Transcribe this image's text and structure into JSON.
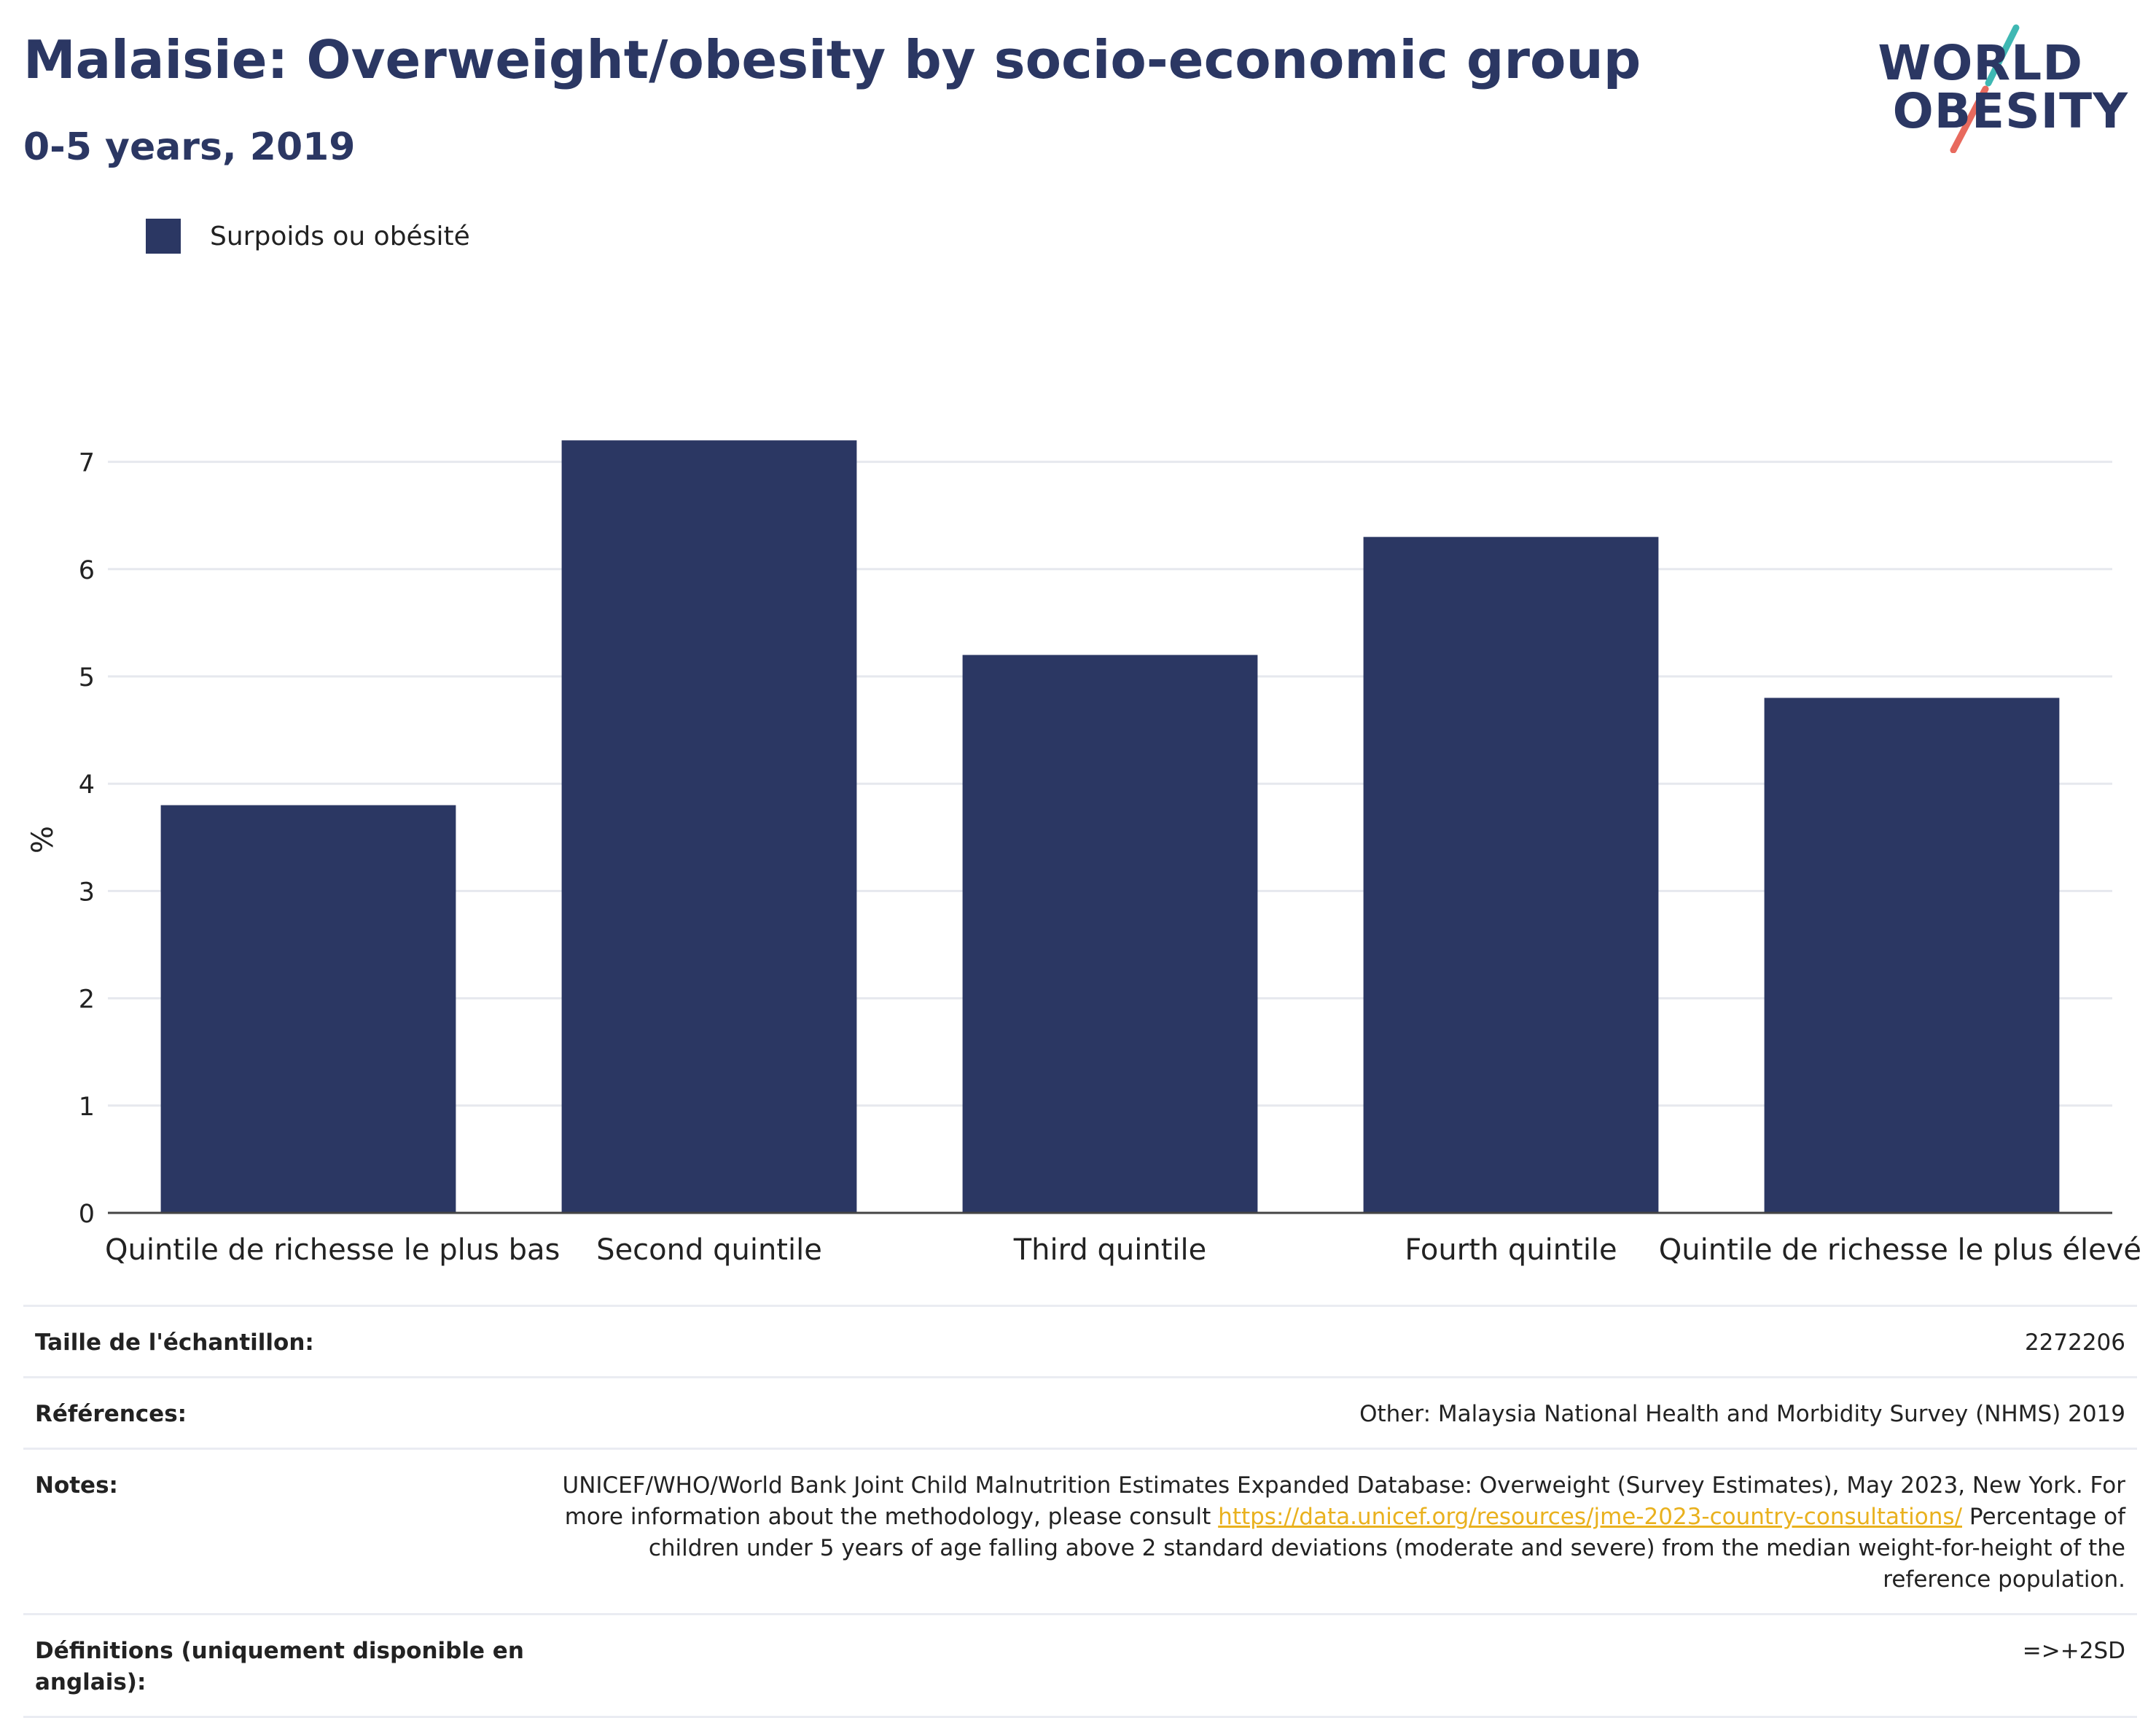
{
  "header": {
    "title": "Malaisie: Overweight/obesity by socio-economic group",
    "subtitle": "0-5 years, 2019"
  },
  "logo": {
    "line1": "WORLD",
    "line2": "OBESITY",
    "colors": {
      "text": "#2b3763",
      "slash_top": "#3fb8b3",
      "slash_bottom": "#e86a5e"
    }
  },
  "legend": {
    "label": "Surpoids ou obésité",
    "color": "#2b3763"
  },
  "chart_data": {
    "type": "bar",
    "title": "Malaisie: Overweight/obesity by socio-economic group",
    "subtitle": "0-5 years, 2019",
    "xlabel": "",
    "ylabel": "%",
    "categories": [
      "Quintile de richesse le plus bas",
      "Second quintile",
      "Third quintile",
      "Fourth quintile",
      "Quintile de richesse le plus élevé"
    ],
    "series": [
      {
        "name": "Surpoids ou obésité",
        "values": [
          3.8,
          7.2,
          5.2,
          6.3,
          4.8
        ],
        "color": "#2b3763"
      }
    ],
    "ylim": [
      0,
      7.5
    ],
    "yticks": [
      0,
      1,
      2,
      3,
      4,
      5,
      6,
      7
    ],
    "grid": true,
    "legend_position": "top-left"
  },
  "info": {
    "sample_size_label": "Taille de l'échantillon:",
    "sample_size_value": "2272206",
    "references_label": "Références:",
    "references_value": "Other: Malaysia National Health and Morbidity Survey (NHMS) 2019",
    "notes_label": "Notes:",
    "notes_text_before": "UNICEF/WHO/World Bank Joint Child Malnutrition Estimates Expanded Database: Overweight (Survey Estimates), May 2023, New York. For more information about the methodology, please consult ",
    "notes_link": "https://data.unicef.org/resources/jme-2023-country-consultations/",
    "notes_text_after": " Percentage of children under 5 years of age falling above 2 standard deviations (moderate and severe) from the median weight-for-height of the reference population.",
    "definitions_label": "Définitions (uniquement disponible en anglais):",
    "definitions_value": "=>+2SD"
  }
}
